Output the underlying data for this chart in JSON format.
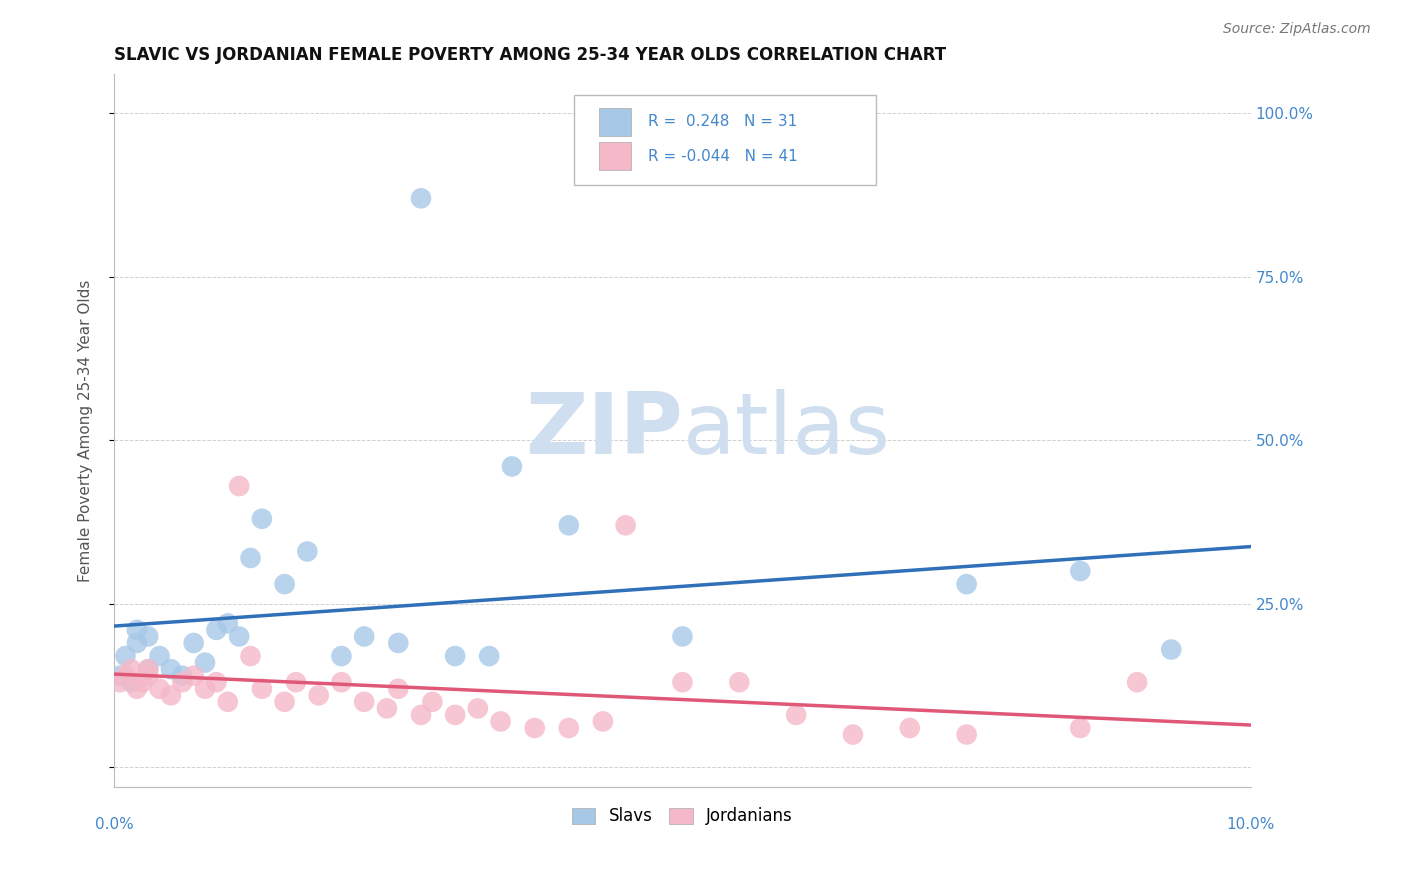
{
  "title": "SLAVIC VS JORDANIAN FEMALE POVERTY AMONG 25-34 YEAR OLDS CORRELATION CHART",
  "source": "Source: ZipAtlas.com",
  "ylabel": "Female Poverty Among 25-34 Year Olds",
  "xlim": [
    0.0,
    0.1
  ],
  "ylim": [
    -0.03,
    1.06
  ],
  "slavs_R": 0.248,
  "slavs_N": 31,
  "jordan_R": -0.044,
  "jordan_N": 41,
  "slavs_color": "#a8c8e8",
  "jordan_color": "#f5b8c8",
  "slavs_line_color": "#3070b8",
  "jordan_line_color": "#e05878",
  "background_color": "#ffffff",
  "grid_color": "#d0d0d0",
  "axis_color": "#bbbbbb",
  "label_color": "#4488cc",
  "title_color": "#111111",
  "watermark_color": "#d0dff0",
  "slavs_x": [
    0.0005,
    0.001,
    0.0015,
    0.002,
    0.002,
    0.003,
    0.003,
    0.004,
    0.005,
    0.006,
    0.007,
    0.008,
    0.009,
    0.01,
    0.011,
    0.012,
    0.013,
    0.015,
    0.017,
    0.02,
    0.022,
    0.025,
    0.027,
    0.03,
    0.035,
    0.04,
    0.05,
    0.033,
    0.075,
    0.085,
    0.093
  ],
  "slavs_y": [
    0.14,
    0.17,
    0.13,
    0.19,
    0.21,
    0.15,
    0.2,
    0.17,
    0.15,
    0.14,
    0.19,
    0.16,
    0.21,
    0.22,
    0.2,
    0.32,
    0.38,
    0.28,
    0.33,
    0.17,
    0.2,
    0.19,
    0.87,
    0.17,
    0.46,
    0.37,
    0.2,
    0.17,
    0.28,
    0.3,
    0.18
  ],
  "jordan_x": [
    0.0005,
    0.001,
    0.0015,
    0.002,
    0.0025,
    0.003,
    0.003,
    0.004,
    0.005,
    0.006,
    0.007,
    0.008,
    0.009,
    0.01,
    0.011,
    0.012,
    0.013,
    0.015,
    0.016,
    0.018,
    0.02,
    0.022,
    0.024,
    0.025,
    0.027,
    0.028,
    0.03,
    0.032,
    0.034,
    0.037,
    0.04,
    0.043,
    0.045,
    0.05,
    0.055,
    0.06,
    0.065,
    0.07,
    0.075,
    0.085,
    0.09
  ],
  "jordan_y": [
    0.13,
    0.14,
    0.15,
    0.12,
    0.13,
    0.14,
    0.15,
    0.12,
    0.11,
    0.13,
    0.14,
    0.12,
    0.13,
    0.1,
    0.43,
    0.17,
    0.12,
    0.1,
    0.13,
    0.11,
    0.13,
    0.1,
    0.09,
    0.12,
    0.08,
    0.1,
    0.08,
    0.09,
    0.07,
    0.06,
    0.06,
    0.07,
    0.37,
    0.13,
    0.13,
    0.08,
    0.05,
    0.06,
    0.05,
    0.06,
    0.13
  ]
}
